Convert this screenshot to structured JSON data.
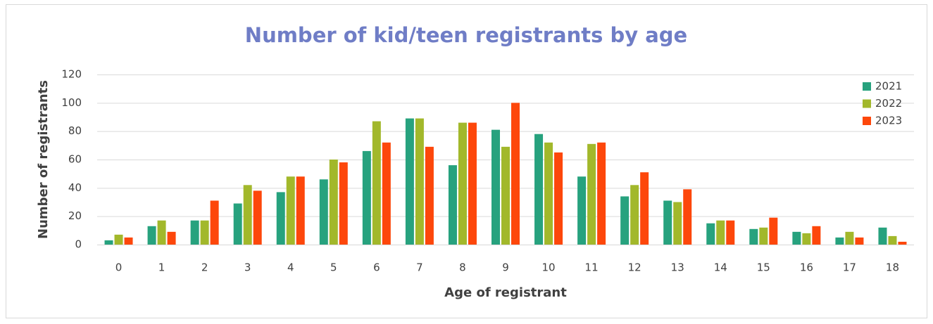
{
  "chart_data": {
    "type": "bar",
    "title": "Number of kid/teen registrants by age",
    "x_label": "Age of registrant",
    "y_label": "Number of registrants",
    "categories": [
      "0",
      "1",
      "2",
      "3",
      "4",
      "5",
      "6",
      "7",
      "8",
      "9",
      "10",
      "11",
      "12",
      "13",
      "14",
      "15",
      "16",
      "17",
      "18"
    ],
    "series": [
      {
        "name": "2021",
        "color": "#27a27e",
        "values": [
          3,
          13,
          17,
          29,
          37,
          46,
          66,
          89,
          56,
          81,
          78,
          48,
          34,
          31,
          15,
          11,
          9,
          5,
          12
        ]
      },
      {
        "name": "2022",
        "color": "#a2b82b",
        "values": [
          7,
          17,
          17,
          42,
          48,
          60,
          87,
          89,
          86,
          69,
          72,
          71,
          42,
          30,
          17,
          12,
          8,
          9,
          6
        ]
      },
      {
        "name": "2023",
        "color": "#fd470b",
        "values": [
          5,
          9,
          31,
          38,
          48,
          58,
          72,
          69,
          86,
          100,
          65,
          72,
          51,
          39,
          17,
          19,
          13,
          5,
          2
        ]
      }
    ],
    "ylim": [
      0,
      120
    ],
    "yticks": [
      0,
      20,
      40,
      60,
      80,
      100,
      120
    ],
    "grid": true,
    "legend": "top-right"
  }
}
